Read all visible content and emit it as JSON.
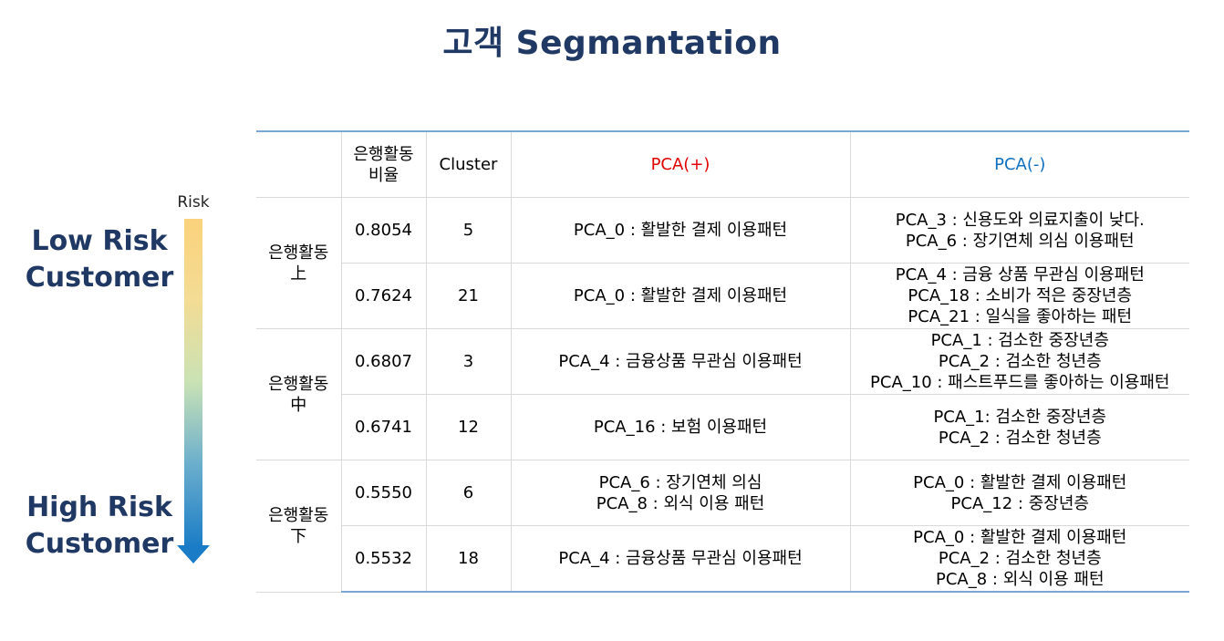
{
  "title": "고객 Segmantation",
  "risk": {
    "label": "Risk",
    "low_line1": "Low Risk",
    "low_line2": "Customer",
    "high_line1": "High Risk",
    "high_line2": "Customer",
    "colors": {
      "top": "#fbd27c",
      "bottom": "#1a7cc6"
    }
  },
  "table": {
    "headers": {
      "ratio_line1": "은행활동",
      "ratio_line2": "비율",
      "cluster": "Cluster",
      "pca_pos": "PCA(+)",
      "pca_neg": "PCA(-)"
    },
    "groups": [
      {
        "label_line1": "은행활동",
        "label_line2": "上"
      },
      {
        "label_line1": "은행활동",
        "label_line2": "中"
      },
      {
        "label_line1": "은행활동",
        "label_line2": "下"
      }
    ],
    "rows": [
      {
        "ratio": "0.8054",
        "cluster": "5",
        "pos": [
          "PCA_0 : 활발한 결제 이용패턴"
        ],
        "neg": [
          "PCA_3 : 신용도와 의료지출이 낮다.",
          "PCA_6 : 장기연체 의심 이용패턴"
        ]
      },
      {
        "ratio": "0.7624",
        "cluster": "21",
        "pos": [
          "PCA_0 : 활발한 결제 이용패턴"
        ],
        "neg": [
          "PCA_4 : 금융 상품 무관심 이용패턴",
          "PCA_18 : 소비가 적은 중장년층",
          "PCA_21 : 일식을 좋아하는 패턴"
        ]
      },
      {
        "ratio": "0.6807",
        "cluster": "3",
        "pos": [
          "PCA_4 : 금융상품 무관심 이용패턴"
        ],
        "neg": [
          "PCA_1 : 검소한 중장년층",
          "PCA_2 : 검소한 청년층",
          "PCA_10 : 패스트푸드를 좋아하는 이용패턴"
        ]
      },
      {
        "ratio": "0.6741",
        "cluster": "12",
        "pos": [
          "PCA_16 : 보험 이용패턴"
        ],
        "neg": [
          "PCA_1: 검소한 중장년층",
          "PCA_2 : 검소한 청년층"
        ]
      },
      {
        "ratio": "0.5550",
        "cluster": "6",
        "pos": [
          "PCA_6 : 장기연체 의심",
          "PCA_8 : 외식 이용 패턴"
        ],
        "neg": [
          "PCA_0 : 활발한 결제 이용패턴",
          "PCA_12 : 중장년층"
        ]
      },
      {
        "ratio": "0.5532",
        "cluster": "18",
        "pos": [
          "PCA_4 : 금융상품 무관심 이용패턴"
        ],
        "neg": [
          "PCA_0 : 활발한 결제 이용패턴",
          "PCA_2 : 검소한 청년층",
          "PCA_8 : 외식 이용 패턴"
        ]
      }
    ]
  }
}
